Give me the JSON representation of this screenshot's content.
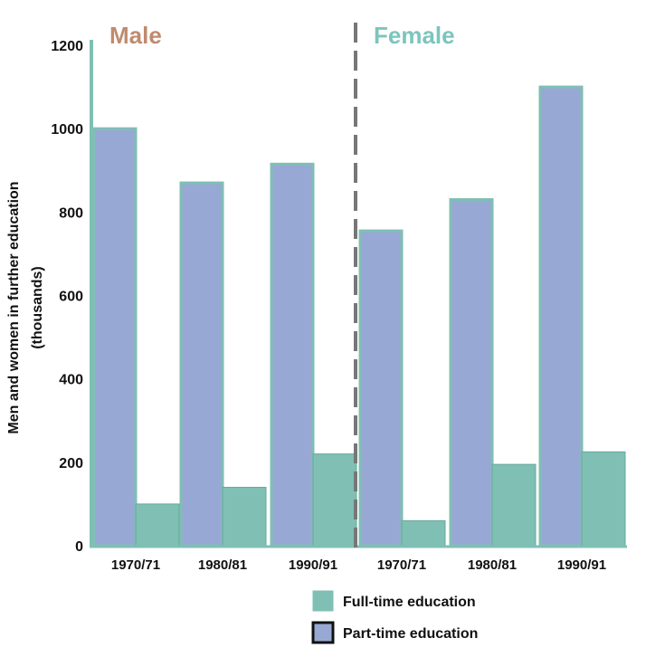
{
  "chart_data": {
    "type": "bar",
    "groups": [
      {
        "label": "Male",
        "color": "#c08b6e"
      },
      {
        "label": "Female",
        "color": "#7cc5bd"
      }
    ],
    "categories": [
      "1970/71",
      "1980/81",
      "1990/91",
      "1970/71",
      "1980/81",
      "1990/91"
    ],
    "series": [
      {
        "name": "Part-time education",
        "color": "#98a8d4",
        "values": [
          1000,
          870,
          915,
          755,
          830,
          1100
        ]
      },
      {
        "name": "Full-time education",
        "color": "#7fbfb4",
        "values": [
          100,
          140,
          220,
          60,
          195,
          225
        ]
      }
    ],
    "ylabel_lines": [
      "Men and women in further education",
      "(thousands)"
    ],
    "ylim": [
      0,
      1200
    ],
    "yticks": [
      0,
      200,
      400,
      600,
      800,
      1000,
      1200
    ],
    "legend": [
      {
        "label": "Full-time education",
        "color": "#7fbfb4"
      },
      {
        "label": "Part-time education",
        "color": "#98a8d4"
      }
    ],
    "legend_position": "bottom-right",
    "grid": false
  }
}
